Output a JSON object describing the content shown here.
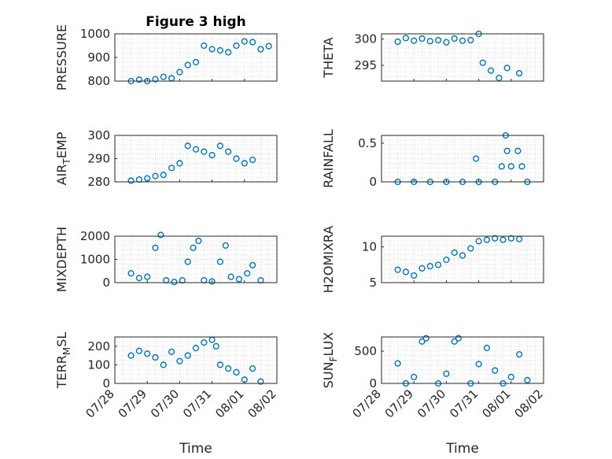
{
  "chart_data": [
    {
      "type": "scatter",
      "title": "Figure 3 high",
      "ylabel": "PRESSURE",
      "xlabel": "",
      "ylim": [
        800,
        1000
      ],
      "yticks": [
        "800",
        "900",
        "1000"
      ],
      "xlim": [
        "07/28",
        "08/02"
      ],
      "xticks": [],
      "points": [
        [
          "07/28 12:00",
          800
        ],
        [
          "07/28 18:00",
          806
        ],
        [
          "07/29 00:00",
          800
        ],
        [
          "07/29 06:00",
          808
        ],
        [
          "07/29 12:00",
          818
        ],
        [
          "07/29 18:00",
          812
        ],
        [
          "07/30 00:00",
          838
        ],
        [
          "07/30 06:00",
          868
        ],
        [
          "07/30 12:00",
          880
        ],
        [
          "07/30 18:00",
          950
        ],
        [
          "07/31 00:00",
          935
        ],
        [
          "07/31 06:00",
          930
        ],
        [
          "07/31 12:00",
          922
        ],
        [
          "07/31 18:00",
          950
        ],
        [
          "08/01 00:00",
          968
        ],
        [
          "08/01 06:00",
          965
        ],
        [
          "08/01 12:00",
          935
        ],
        [
          "08/01 18:00",
          948
        ]
      ]
    },
    {
      "type": "scatter",
      "title": "",
      "ylabel": "THETA",
      "xlabel": "",
      "ylim": [
        292,
        301
      ],
      "yticks": [
        "295",
        "300"
      ],
      "xlim": [
        "07/28",
        "08/02"
      ],
      "xticks": [],
      "points": [
        [
          "07/28 12:00",
          299.5
        ],
        [
          "07/28 18:00",
          300.2
        ],
        [
          "07/29 00:00",
          299.7
        ],
        [
          "07/29 06:00",
          300.1
        ],
        [
          "07/29 12:00",
          299.6
        ],
        [
          "07/29 18:00",
          299.8
        ],
        [
          "07/30 00:00",
          299.4
        ],
        [
          "07/30 06:00",
          300.1
        ],
        [
          "07/30 12:00",
          299.7
        ],
        [
          "07/30 18:00",
          299.8
        ],
        [
          "07/31 00:00",
          301
        ],
        [
          "07/31 03:00",
          295.5
        ],
        [
          "07/31 09:00",
          294
        ],
        [
          "07/31 15:00",
          292.6
        ],
        [
          "07/31 21:00",
          294.5
        ],
        [
          "08/01 06:00",
          293.5
        ]
      ]
    },
    {
      "type": "scatter",
      "title": "",
      "ylabel": "AIR_TEMP",
      "xlabel": "",
      "ylim": [
        280,
        300
      ],
      "yticks": [
        "280",
        "290",
        "300"
      ],
      "xlim": [
        "07/28",
        "08/02"
      ],
      "xticks": [],
      "points": [
        [
          "07/28 12:00",
          280.5
        ],
        [
          "07/28 18:00",
          281
        ],
        [
          "07/29 00:00",
          281.5
        ],
        [
          "07/29 06:00",
          282.5
        ],
        [
          "07/29 12:00",
          283
        ],
        [
          "07/29 18:00",
          286
        ],
        [
          "07/30 00:00",
          288
        ],
        [
          "07/30 06:00",
          295.5
        ],
        [
          "07/30 12:00",
          294
        ],
        [
          "07/30 18:00",
          293
        ],
        [
          "07/31 00:00",
          291.5
        ],
        [
          "07/31 06:00",
          295.5
        ],
        [
          "07/31 12:00",
          293
        ],
        [
          "07/31 18:00",
          290
        ],
        [
          "08/01 00:00",
          288
        ],
        [
          "08/01 06:00",
          289.5
        ]
      ]
    },
    {
      "type": "scatter",
      "title": "",
      "ylabel": "RAINFALL",
      "xlabel": "",
      "ylim": [
        0,
        0.6
      ],
      "yticks": [
        "0",
        "0.5"
      ],
      "xlim": [
        "07/28",
        "08/02"
      ],
      "xticks": [],
      "points": [
        [
          "07/28 12:00",
          0
        ],
        [
          "07/29 00:00",
          0
        ],
        [
          "07/29 12:00",
          0
        ],
        [
          "07/30 00:00",
          0
        ],
        [
          "07/30 12:00",
          0
        ],
        [
          "07/30 22:00",
          0.3
        ],
        [
          "07/31 00:00",
          0
        ],
        [
          "07/31 12:00",
          0
        ],
        [
          "07/31 17:00",
          0.2
        ],
        [
          "07/31 20:00",
          0.6
        ],
        [
          "07/31 21:00",
          0.4
        ],
        [
          "08/01 00:00",
          0.2
        ],
        [
          "08/01 05:00",
          0.4
        ],
        [
          "08/01 08:00",
          0.2
        ],
        [
          "08/01 12:00",
          0
        ]
      ]
    },
    {
      "type": "scatter",
      "title": "",
      "ylabel": "MIXDEPTH",
      "xlabel": "",
      "ylim": [
        0,
        2000
      ],
      "yticks": [
        "0",
        "1000",
        "2000"
      ],
      "xlim": [
        "07/28",
        "08/02"
      ],
      "xticks": [],
      "points": [
        [
          "07/28 12:00",
          400
        ],
        [
          "07/28 18:00",
          200
        ],
        [
          "07/29 00:00",
          250
        ],
        [
          "07/29 06:00",
          1500
        ],
        [
          "07/29 10:00",
          2050
        ],
        [
          "07/29 14:00",
          100
        ],
        [
          "07/29 20:00",
          30
        ],
        [
          "07/30 02:00",
          100
        ],
        [
          "07/30 06:00",
          900
        ],
        [
          "07/30 10:00",
          1500
        ],
        [
          "07/30 14:00",
          1800
        ],
        [
          "07/30 18:00",
          100
        ],
        [
          "07/31 00:00",
          50
        ],
        [
          "07/31 06:00",
          900
        ],
        [
          "07/31 10:00",
          1600
        ],
        [
          "07/31 14:00",
          250
        ],
        [
          "07/31 20:00",
          150
        ],
        [
          "08/01 02:00",
          400
        ],
        [
          "08/01 06:00",
          750
        ],
        [
          "08/01 12:00",
          100
        ]
      ]
    },
    {
      "type": "scatter",
      "title": "",
      "ylabel": "H2OMIXRA",
      "xlabel": "",
      "ylim": [
        5,
        11.5
      ],
      "yticks": [
        "5",
        "10"
      ],
      "xlim": [
        "07/28",
        "08/02"
      ],
      "xticks": [],
      "points": [
        [
          "07/28 12:00",
          6.8
        ],
        [
          "07/28 18:00",
          6.5
        ],
        [
          "07/29 00:00",
          6
        ],
        [
          "07/29 06:00",
          7
        ],
        [
          "07/29 12:00",
          7.3
        ],
        [
          "07/29 18:00",
          7.5
        ],
        [
          "07/30 00:00",
          8.2
        ],
        [
          "07/30 06:00",
          9.2
        ],
        [
          "07/30 12:00",
          8.8
        ],
        [
          "07/30 18:00",
          9.8
        ],
        [
          "07/31 00:00",
          10.8
        ],
        [
          "07/31 06:00",
          11
        ],
        [
          "07/31 12:00",
          11.2
        ],
        [
          "07/31 18:00",
          11
        ],
        [
          "08/01 00:00",
          11.2
        ],
        [
          "08/01 06:00",
          11.1
        ]
      ]
    },
    {
      "type": "scatter",
      "title": "",
      "ylabel": "TERR_MSL",
      "xlabel": "Time",
      "ylim": [
        0,
        250
      ],
      "yticks": [
        "0",
        "100",
        "200"
      ],
      "xlim": [
        "07/28",
        "08/02"
      ],
      "xticks": [
        "07/28",
        "07/29",
        "07/30",
        "07/31",
        "08/01",
        "08/02"
      ],
      "points": [
        [
          "07/28 12:00",
          150
        ],
        [
          "07/28 18:00",
          175
        ],
        [
          "07/29 00:00",
          160
        ],
        [
          "07/29 06:00",
          140
        ],
        [
          "07/29 12:00",
          100
        ],
        [
          "07/29 18:00",
          170
        ],
        [
          "07/30 00:00",
          120
        ],
        [
          "07/30 06:00",
          150
        ],
        [
          "07/30 12:00",
          190
        ],
        [
          "07/30 18:00",
          220
        ],
        [
          "07/31 00:00",
          235
        ],
        [
          "07/31 03:00",
          200
        ],
        [
          "07/31 06:00",
          100
        ],
        [
          "07/31 12:00",
          80
        ],
        [
          "07/31 18:00",
          60
        ],
        [
          "08/01 00:00",
          20
        ],
        [
          "08/01 06:00",
          80
        ],
        [
          "08/01 12:00",
          10
        ]
      ]
    },
    {
      "type": "scatter",
      "title": "",
      "ylabel": "SUN_FLUX",
      "xlabel": "Time",
      "ylim": [
        0,
        720
      ],
      "yticks": [
        "0",
        "500"
      ],
      "xlim": [
        "07/28",
        "08/02"
      ],
      "xticks": [
        "07/28",
        "07/29",
        "07/30",
        "07/31",
        "08/01",
        "08/02"
      ],
      "points": [
        [
          "07/28 12:00",
          310
        ],
        [
          "07/28 18:00",
          0
        ],
        [
          "07/29 00:00",
          100
        ],
        [
          "07/29 06:00",
          650
        ],
        [
          "07/29 09:00",
          700
        ],
        [
          "07/29 18:00",
          0
        ],
        [
          "07/30 00:00",
          150
        ],
        [
          "07/30 06:00",
          650
        ],
        [
          "07/30 09:00",
          700
        ],
        [
          "07/30 18:00",
          0
        ],
        [
          "07/31 00:00",
          300
        ],
        [
          "07/31 06:00",
          550
        ],
        [
          "07/31 12:00",
          200
        ],
        [
          "07/31 18:00",
          0
        ],
        [
          "08/01 00:00",
          100
        ],
        [
          "08/01 06:00",
          450
        ],
        [
          "08/01 12:00",
          50
        ]
      ]
    }
  ],
  "colors": {
    "marker": "#0072bd",
    "axis": "#262626",
    "grid": "#d0d0d0"
  }
}
